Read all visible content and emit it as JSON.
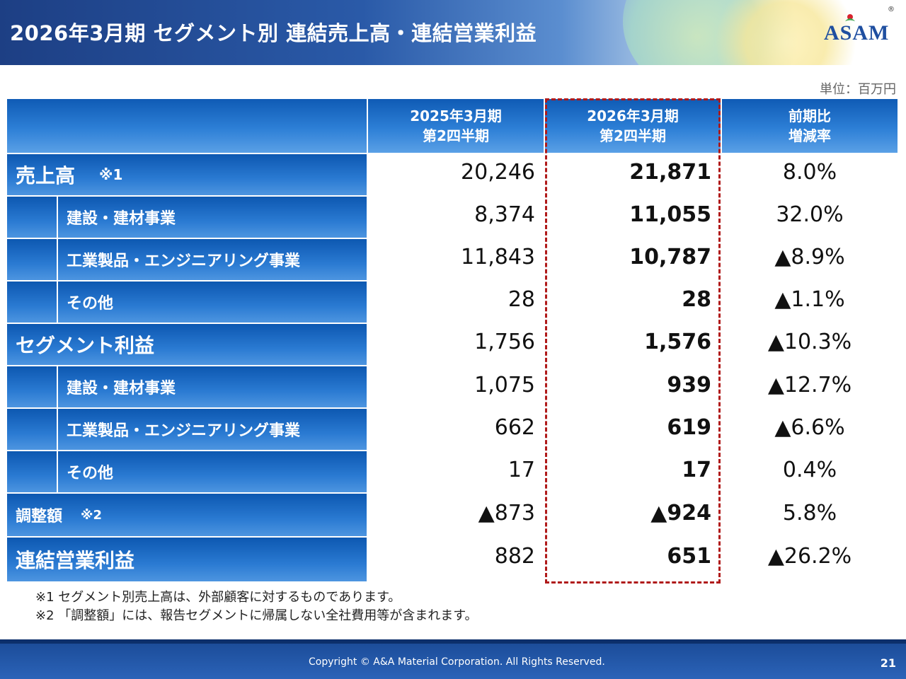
{
  "title": "2026年3月期 セグメント別 連結売上高・連結営業利益",
  "logo_text": "ASAM",
  "logo_reg": "®",
  "unit": "単位：百万円",
  "columns": {
    "prev": [
      "2025年3月期",
      "第2四半期"
    ],
    "curr": [
      "2026年3月期",
      "第2四半期"
    ],
    "change": [
      "前期比",
      "増減率"
    ]
  },
  "rows": [
    {
      "label": "売上高",
      "note": "※1",
      "prev": "20,246",
      "curr": "21,871",
      "change": "8.0%"
    },
    {
      "label": "建設・建材事業",
      "prev": "8,374",
      "curr": "11,055",
      "change": "32.0%"
    },
    {
      "label": "工業製品・エンジニアリング事業",
      "prev": "11,843",
      "curr": "10,787",
      "change": "▲8.9%"
    },
    {
      "label": "その他",
      "prev": "28",
      "curr": "28",
      "change": "▲1.1%"
    },
    {
      "label": "セグメント利益",
      "prev": "1,756",
      "curr": "1,576",
      "change": "▲10.3%"
    },
    {
      "label": "建設・建材事業",
      "prev": "1,075",
      "curr": "939",
      "change": "▲12.7%"
    },
    {
      "label": "工業製品・エンジニアリング事業",
      "prev": "662",
      "curr": "619",
      "change": "▲6.6%"
    },
    {
      "label": "その他",
      "prev": "17",
      "curr": "17",
      "change": "0.4%"
    },
    {
      "label": "調整額",
      "note": "※2",
      "prev": "▲873",
      "curr": "▲924",
      "change": "5.8%"
    },
    {
      "label": "連結営業利益",
      "prev": "882",
      "curr": "651",
      "change": "▲26.2%"
    }
  ],
  "notes": [
    "※1 セグメント別売上高は、外部顧客に対するものであります。",
    "※2 「調整額」には、報告セグメントに帰属しない全社費用等が含まれます。"
  ],
  "footer": {
    "copyright": "Copyright © A&A Material Corporation. All Rights Reserved.",
    "page": "21"
  }
}
